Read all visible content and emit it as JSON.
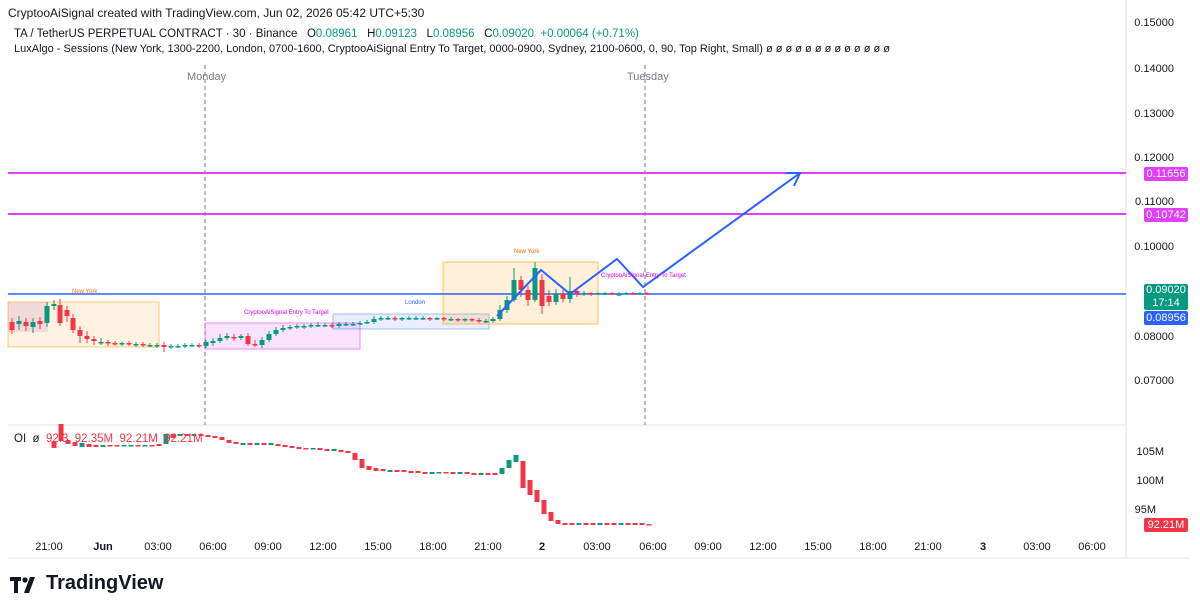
{
  "header": {
    "snapshot_text": "CryptooAiSignal created with TradingView.com, Jun 02, 2026 05:42 UTC+5:30"
  },
  "legend": {
    "symbol": "TA / TetherUS PERPETUAL CONTRACT · 30 · Binance",
    "o_label": "O",
    "o_value": "0.08961",
    "h_label": "H",
    "h_value": "0.09123",
    "l_label": "L",
    "l_value": "0.08956",
    "c_label": "C",
    "c_value": "0.09020",
    "change": "+0.00064 (+0.71%)",
    "indicator": "LuxAlgo - Sessions (New York, 1300-2200, London, 0700-1600, CryptooAiSignal  Entry To Target, 0000-0900, Sydney, 2100-0600, 0, 90, Top Right, Small)  ø  ø  ø  ø  ø  ø  ø  ø  ø  ø  ø  ø  ø"
  },
  "day_labels": {
    "monday": "Monday",
    "tuesday": "Tuesday"
  },
  "price_axis": {
    "ticks": [
      "0.15000",
      "0.14000",
      "0.13000",
      "0.12000",
      "0.11000",
      "0.10000",
      "0.08000",
      "0.07000"
    ],
    "tag_upper": "0.11656",
    "tag_lower": "0.10742",
    "tag_current": "0.09020",
    "tag_countdown": "17:14",
    "tag_low": "0.08956"
  },
  "oi": {
    "legend_label": "OI",
    "legend_symbol": "ø",
    "values": [
      "92.3",
      "92.35M",
      "92.21M",
      "92.21M"
    ],
    "axis_ticks": [
      "105M",
      "100M",
      "95M"
    ],
    "tag_current": "92.21M"
  },
  "time_axis": {
    "labels": [
      "21:00",
      "Jun",
      "03:00",
      "06:00",
      "09:00",
      "12:00",
      "15:00",
      "18:00",
      "21:00",
      "2",
      "03:00",
      "06:00",
      "09:00",
      "12:00",
      "15:00",
      "18:00",
      "21:00",
      "3",
      "03:00",
      "06:00"
    ]
  },
  "sessions": {
    "new_york_1": "New York",
    "entry_1": "CryptooAiSignal  Entry To Target",
    "london": "London",
    "new_york_2": "New York",
    "entry_2": "CryptooAiSignal  Entry To Target"
  },
  "colors": {
    "up": "#089981",
    "down": "#f23645",
    "horizontal_lines": "#e040fb",
    "projection": "#2962ff"
  },
  "brand": {
    "name": "TradingView"
  }
}
